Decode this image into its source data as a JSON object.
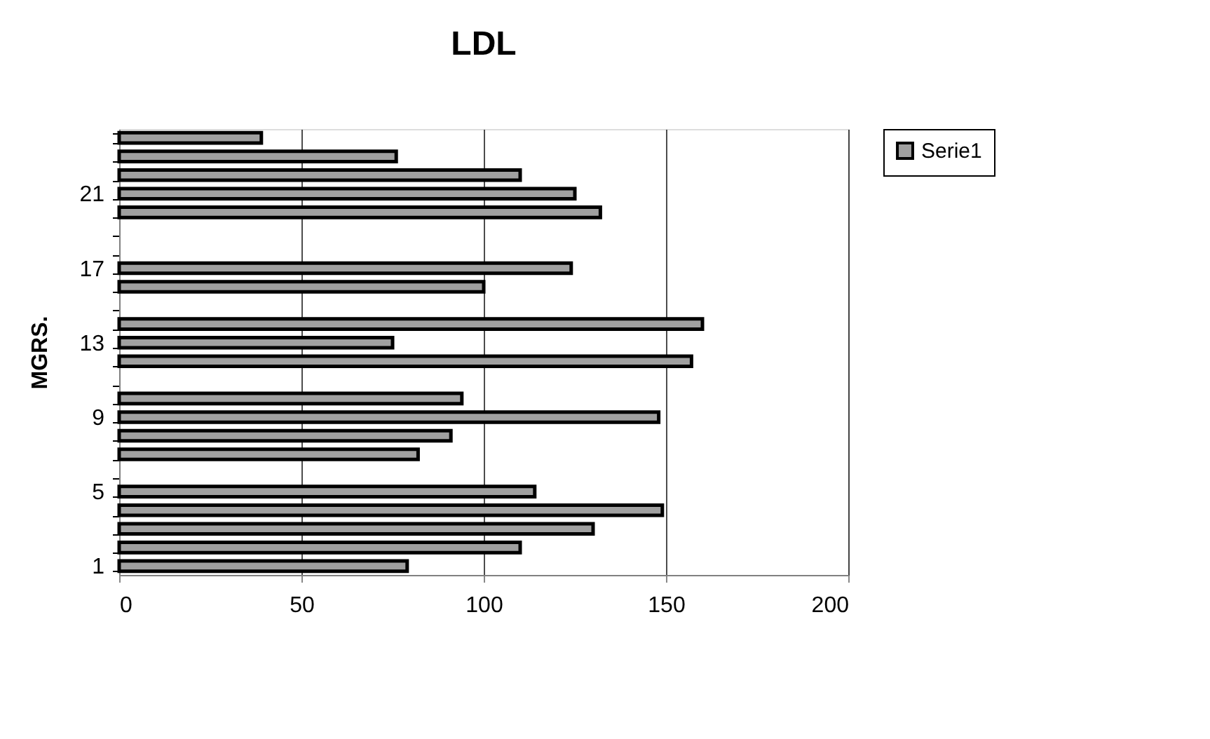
{
  "chart_data": {
    "type": "bar",
    "orientation": "horizontal",
    "title": "LDL",
    "ylabel": "MGRS.",
    "categories": [
      null,
      null,
      null,
      "21",
      null,
      null,
      null,
      "17",
      null,
      null,
      null,
      "13",
      null,
      null,
      null,
      "9",
      null,
      null,
      null,
      "5",
      null,
      null,
      null,
      "1"
    ],
    "series": [
      {
        "name": "Serie1",
        "color": "#a0a0a0",
        "values": [
          39,
          76,
          110,
          125,
          132,
          null,
          null,
          124,
          100,
          null,
          160,
          75,
          157,
          null,
          94,
          148,
          91,
          82,
          null,
          114,
          149,
          130,
          110,
          79
        ]
      }
    ],
    "xlim": [
      0,
      200
    ],
    "xticks": [
      0,
      50,
      100,
      150,
      200
    ],
    "grid": "x",
    "legend": "right"
  }
}
